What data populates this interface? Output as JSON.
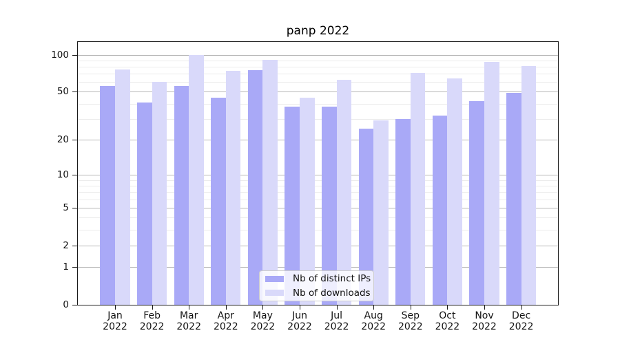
{
  "title": "panp 2022",
  "colors": {
    "distinct_ips": "#a9a9f7",
    "downloads": "#d9d9fa",
    "grid_major": "#b5b5b5",
    "grid_minor": "#ebebeb",
    "axis": "#1a1a1a",
    "text": "#111111"
  },
  "y_axis": {
    "scale": "log10(1+v)",
    "major_ticks": [
      0,
      1,
      2,
      5,
      10,
      20,
      50,
      100
    ],
    "minor_ticks": [
      3,
      4,
      6,
      7,
      8,
      9,
      30,
      40,
      60,
      70,
      80,
      90
    ]
  },
  "x_axis": {
    "month_labels": [
      "Jan",
      "Feb",
      "Mar",
      "Apr",
      "May",
      "Jun",
      "Jul",
      "Aug",
      "Sep",
      "Oct",
      "Nov",
      "Dec"
    ],
    "year_label": "2022"
  },
  "legend": {
    "items": [
      {
        "label": "Nb of distinct IPs",
        "color": "#a9a9f7"
      },
      {
        "label": "Nb of downloads",
        "color": "#d9d9fa"
      }
    ]
  },
  "chart_data": {
    "type": "bar",
    "title": "panp 2022",
    "categories": [
      "Jan 2022",
      "Feb 2022",
      "Mar 2022",
      "Apr 2022",
      "May 2022",
      "Jun 2022",
      "Jul 2022",
      "Aug 2022",
      "Sep 2022",
      "Oct 2022",
      "Nov 2022",
      "Dec 2022"
    ],
    "series": [
      {
        "name": "Nb of distinct IPs",
        "values": [
          56,
          41,
          56,
          45,
          75,
          38,
          38,
          25,
          30,
          32,
          42,
          49
        ]
      },
      {
        "name": "Nb of downloads",
        "values": [
          76,
          60,
          100,
          74,
          91,
          45,
          63,
          29,
          71,
          64,
          88,
          81
        ]
      }
    ],
    "xlabel": "",
    "ylabel": "",
    "yscale": "log1p",
    "ylim": [
      0,
      127
    ],
    "yticks": [
      0,
      1,
      2,
      5,
      10,
      20,
      50,
      100
    ],
    "grid": true,
    "legend_position": "lower center inside"
  }
}
